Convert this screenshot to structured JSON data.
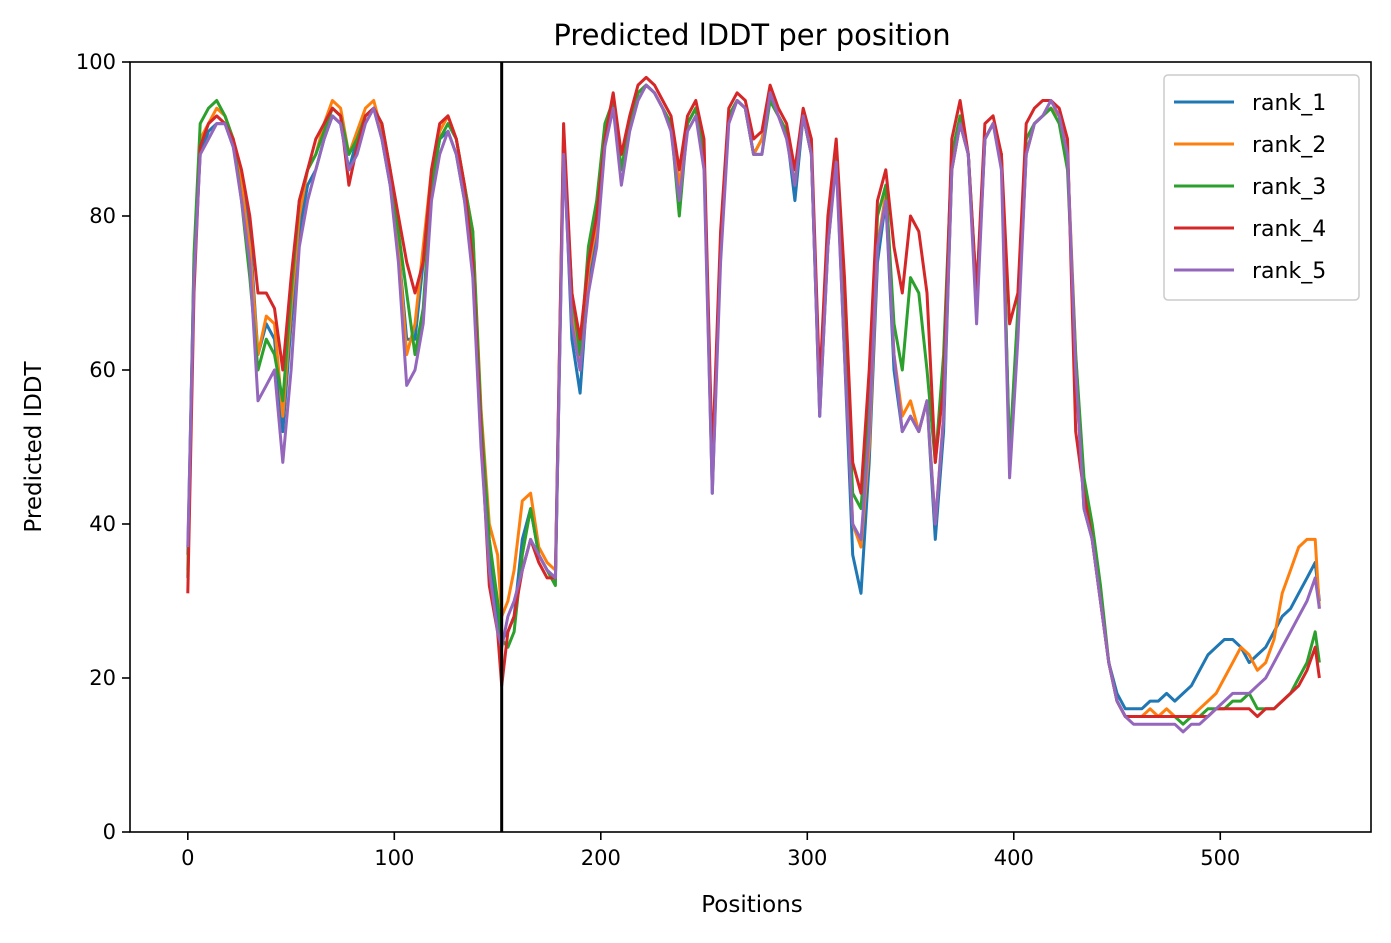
{
  "chart_data": {
    "type": "line",
    "title": "Predicted lDDT per position",
    "xlabel": "Positions",
    "ylabel": "Predicted lDDT",
    "xlim": [
      -28,
      573
    ],
    "ylim": [
      0,
      100
    ],
    "xticks": [
      0,
      100,
      200,
      300,
      400,
      500
    ],
    "yticks": [
      0,
      20,
      40,
      60,
      80,
      100
    ],
    "grid": false,
    "legend_position": "top-right",
    "vertical_line_x": 152,
    "colors": [
      "#1f77b4",
      "#ff7f0e",
      "#2ca02c",
      "#d62728",
      "#9467bd"
    ],
    "x": [
      0,
      3,
      6,
      10,
      14,
      18,
      22,
      26,
      30,
      34,
      38,
      42,
      46,
      50,
      54,
      58,
      62,
      66,
      70,
      74,
      78,
      82,
      86,
      90,
      94,
      98,
      102,
      106,
      110,
      114,
      118,
      122,
      126,
      130,
      134,
      138,
      142,
      146,
      150,
      152,
      155,
      158,
      162,
      166,
      170,
      174,
      178,
      182,
      186,
      190,
      194,
      198,
      202,
      206,
      210,
      214,
      218,
      222,
      226,
      230,
      234,
      238,
      242,
      246,
      250,
      254,
      258,
      262,
      266,
      270,
      274,
      278,
      282,
      286,
      290,
      294,
      298,
      302,
      306,
      310,
      314,
      318,
      322,
      326,
      330,
      334,
      338,
      342,
      346,
      350,
      354,
      358,
      362,
      366,
      370,
      374,
      378,
      382,
      386,
      390,
      394,
      398,
      402,
      406,
      410,
      414,
      418,
      422,
      426,
      430,
      434,
      438,
      442,
      446,
      450,
      454,
      458,
      462,
      466,
      470,
      474,
      478,
      482,
      486,
      490,
      494,
      498,
      502,
      506,
      510,
      514,
      518,
      522,
      526,
      530,
      534,
      538,
      542,
      546,
      548
    ],
    "series": [
      {
        "name": "rank_1",
        "values": [
          36,
          74,
          88,
          91,
          92,
          92,
          89,
          84,
          78,
          62,
          66,
          64,
          52,
          66,
          78,
          84,
          86,
          90,
          93,
          92,
          86,
          90,
          93,
          94,
          90,
          84,
          76,
          64,
          64,
          74,
          84,
          90,
          91,
          88,
          82,
          76,
          52,
          36,
          28,
          25,
          26,
          28,
          38,
          42,
          36,
          34,
          33,
          90,
          64,
          57,
          72,
          78,
          90,
          94,
          86,
          92,
          96,
          97,
          96,
          94,
          92,
          82,
          92,
          94,
          88,
          44,
          76,
          93,
          95,
          94,
          88,
          90,
          95,
          93,
          91,
          82,
          93,
          88,
          54,
          76,
          88,
          62,
          36,
          31,
          48,
          74,
          82,
          60,
          52,
          54,
          52,
          56,
          38,
          52,
          86,
          92,
          88,
          68,
          90,
          92,
          88,
          48,
          66,
          88,
          92,
          93,
          94,
          93,
          88,
          60,
          42,
          38,
          30,
          22,
          18,
          16,
          16,
          16,
          17,
          17,
          18,
          17,
          18,
          19,
          21,
          23,
          24,
          25,
          25,
          24,
          22,
          23,
          24,
          26,
          28,
          29,
          31,
          33,
          35,
          30
        ]
      },
      {
        "name": "rank_2",
        "values": [
          34,
          72,
          90,
          92,
          94,
          93,
          90,
          84,
          76,
          62,
          67,
          66,
          54,
          68,
          80,
          86,
          88,
          92,
          95,
          94,
          88,
          91,
          94,
          95,
          91,
          85,
          76,
          62,
          66,
          76,
          86,
          91,
          93,
          90,
          84,
          78,
          55,
          40,
          36,
          28,
          30,
          34,
          43,
          44,
          37,
          35,
          34,
          91,
          68,
          60,
          73,
          79,
          91,
          95,
          86,
          92,
          96,
          97,
          96,
          94,
          92,
          84,
          92,
          94,
          88,
          47,
          76,
          93,
          95,
          94,
          88,
          90,
          95,
          93,
          91,
          84,
          93,
          88,
          56,
          76,
          88,
          64,
          40,
          37,
          50,
          76,
          83,
          62,
          54,
          56,
          52,
          56,
          40,
          54,
          86,
          92,
          88,
          68,
          90,
          92,
          88,
          48,
          66,
          88,
          92,
          93,
          94,
          93,
          88,
          62,
          44,
          38,
          30,
          22,
          17,
          15,
          15,
          15,
          16,
          15,
          16,
          15,
          15,
          15,
          16,
          17,
          18,
          20,
          22,
          24,
          23,
          21,
          22,
          25,
          31,
          34,
          37,
          38,
          38,
          29
        ]
      },
      {
        "name": "rank_3",
        "values": [
          33,
          75,
          92,
          94,
          95,
          93,
          90,
          82,
          72,
          60,
          64,
          62,
          56,
          70,
          82,
          86,
          88,
          91,
          94,
          93,
          88,
          90,
          93,
          94,
          92,
          86,
          78,
          70,
          62,
          68,
          84,
          90,
          92,
          90,
          84,
          78,
          54,
          38,
          30,
          25,
          24,
          26,
          36,
          42,
          36,
          34,
          32,
          90,
          70,
          62,
          76,
          82,
          92,
          95,
          86,
          92,
          96,
          97,
          96,
          94,
          92,
          80,
          92,
          94,
          88,
          46,
          76,
          93,
          95,
          94,
          88,
          88,
          95,
          93,
          91,
          84,
          93,
          88,
          55,
          78,
          88,
          66,
          44,
          42,
          56,
          80,
          84,
          66,
          60,
          72,
          70,
          60,
          48,
          62,
          88,
          93,
          88,
          70,
          90,
          92,
          88,
          49,
          68,
          90,
          92,
          93,
          94,
          92,
          86,
          62,
          46,
          40,
          32,
          22,
          17,
          15,
          15,
          15,
          15,
          15,
          15,
          15,
          14,
          15,
          15,
          16,
          16,
          16,
          17,
          17,
          18,
          16,
          16,
          16,
          17,
          18,
          20,
          22,
          26,
          22
        ]
      },
      {
        "name": "rank_4",
        "values": [
          31,
          70,
          89,
          92,
          93,
          92,
          90,
          86,
          80,
          70,
          70,
          68,
          60,
          72,
          82,
          86,
          90,
          92,
          94,
          93,
          84,
          89,
          93,
          94,
          92,
          86,
          80,
          74,
          70,
          74,
          86,
          92,
          93,
          90,
          84,
          74,
          52,
          32,
          26,
          19,
          26,
          28,
          34,
          38,
          35,
          33,
          33,
          92,
          70,
          64,
          74,
          80,
          90,
          96,
          88,
          93,
          97,
          98,
          97,
          95,
          93,
          86,
          93,
          95,
          90,
          48,
          78,
          94,
          96,
          95,
          90,
          91,
          97,
          94,
          92,
          86,
          94,
          90,
          58,
          80,
          90,
          72,
          48,
          44,
          60,
          82,
          86,
          76,
          70,
          80,
          78,
          70,
          48,
          58,
          90,
          95,
          88,
          70,
          92,
          93,
          88,
          66,
          70,
          92,
          94,
          95,
          95,
          94,
          90,
          52,
          44,
          38,
          30,
          22,
          17,
          15,
          15,
          15,
          15,
          15,
          15,
          15,
          15,
          15,
          15,
          15,
          16,
          16,
          16,
          16,
          16,
          15,
          16,
          16,
          17,
          18,
          19,
          21,
          24,
          20
        ]
      },
      {
        "name": "rank_5",
        "values": [
          37,
          72,
          88,
          90,
          92,
          92,
          89,
          82,
          74,
          56,
          58,
          60,
          48,
          60,
          76,
          82,
          86,
          90,
          93,
          92,
          86,
          88,
          92,
          94,
          90,
          84,
          74,
          58,
          60,
          66,
          82,
          88,
          91,
          88,
          82,
          72,
          50,
          34,
          26,
          24,
          28,
          30,
          34,
          38,
          36,
          34,
          33,
          88,
          66,
          60,
          70,
          76,
          89,
          94,
          84,
          91,
          95,
          97,
          96,
          94,
          91,
          82,
          91,
          93,
          86,
          44,
          74,
          92,
          95,
          94,
          88,
          88,
          96,
          93,
          90,
          84,
          93,
          88,
          54,
          76,
          87,
          62,
          40,
          38,
          52,
          76,
          82,
          62,
          52,
          54,
          52,
          56,
          40,
          54,
          86,
          92,
          88,
          66,
          90,
          92,
          86,
          46,
          64,
          88,
          92,
          93,
          95,
          93,
          88,
          60,
          42,
          38,
          30,
          22,
          17,
          15,
          14,
          14,
          14,
          14,
          14,
          14,
          13,
          14,
          14,
          15,
          16,
          17,
          18,
          18,
          18,
          19,
          20,
          22,
          24,
          26,
          28,
          30,
          33,
          29
        ]
      }
    ]
  }
}
